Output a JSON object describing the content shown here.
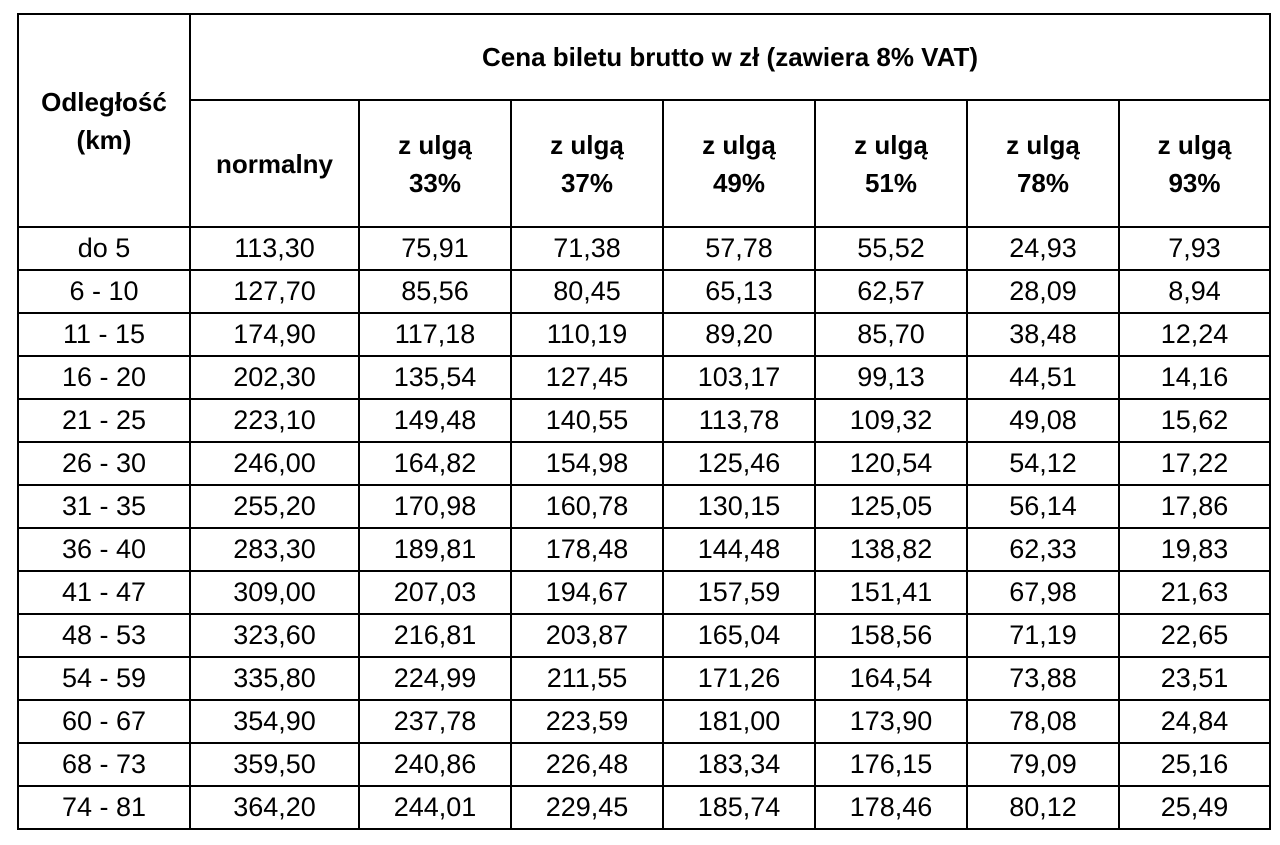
{
  "header": {
    "distance_line1": "Odległość",
    "distance_line2": "(km)",
    "price_title": "Cena biletu brutto w zł (zawiera 8% VAT)",
    "columns": [
      {
        "line1": "normalny",
        "line2": ""
      },
      {
        "line1": "z ulgą",
        "line2": "33%"
      },
      {
        "line1": "z ulgą",
        "line2": "37%"
      },
      {
        "line1": "z ulgą",
        "line2": "49%"
      },
      {
        "line1": "z ulgą",
        "line2": "51%"
      },
      {
        "line1": "z ulgą",
        "line2": "78%"
      },
      {
        "line1": "z ulgą",
        "line2": "93%"
      }
    ]
  },
  "rows": [
    [
      "do 5",
      "113,30",
      "75,91",
      "71,38",
      "57,78",
      "55,52",
      "24,93",
      "7,93"
    ],
    [
      "6 - 10",
      "127,70",
      "85,56",
      "80,45",
      "65,13",
      "62,57",
      "28,09",
      "8,94"
    ],
    [
      "11 - 15",
      "174,90",
      "117,18",
      "110,19",
      "89,20",
      "85,70",
      "38,48",
      "12,24"
    ],
    [
      "16 - 20",
      "202,30",
      "135,54",
      "127,45",
      "103,17",
      "99,13",
      "44,51",
      "14,16"
    ],
    [
      "21 - 25",
      "223,10",
      "149,48",
      "140,55",
      "113,78",
      "109,32",
      "49,08",
      "15,62"
    ],
    [
      "26 - 30",
      "246,00",
      "164,82",
      "154,98",
      "125,46",
      "120,54",
      "54,12",
      "17,22"
    ],
    [
      "31 - 35",
      "255,20",
      "170,98",
      "160,78",
      "130,15",
      "125,05",
      "56,14",
      "17,86"
    ],
    [
      "36 - 40",
      "283,30",
      "189,81",
      "178,48",
      "144,48",
      "138,82",
      "62,33",
      "19,83"
    ],
    [
      "41 - 47",
      "309,00",
      "207,03",
      "194,67",
      "157,59",
      "151,41",
      "67,98",
      "21,63"
    ],
    [
      "48 - 53",
      "323,60",
      "216,81",
      "203,87",
      "165,04",
      "158,56",
      "71,19",
      "22,65"
    ],
    [
      "54 - 59",
      "335,80",
      "224,99",
      "211,55",
      "171,26",
      "164,54",
      "73,88",
      "23,51"
    ],
    [
      "60 - 67",
      "354,90",
      "237,78",
      "223,59",
      "181,00",
      "173,90",
      "78,08",
      "24,84"
    ],
    [
      "68 - 73",
      "359,50",
      "240,86",
      "226,48",
      "183,34",
      "176,15",
      "79,09",
      "25,16"
    ],
    [
      "74 - 81",
      "364,20",
      "244,01",
      "229,45",
      "185,74",
      "178,46",
      "80,12",
      "25,49"
    ]
  ]
}
